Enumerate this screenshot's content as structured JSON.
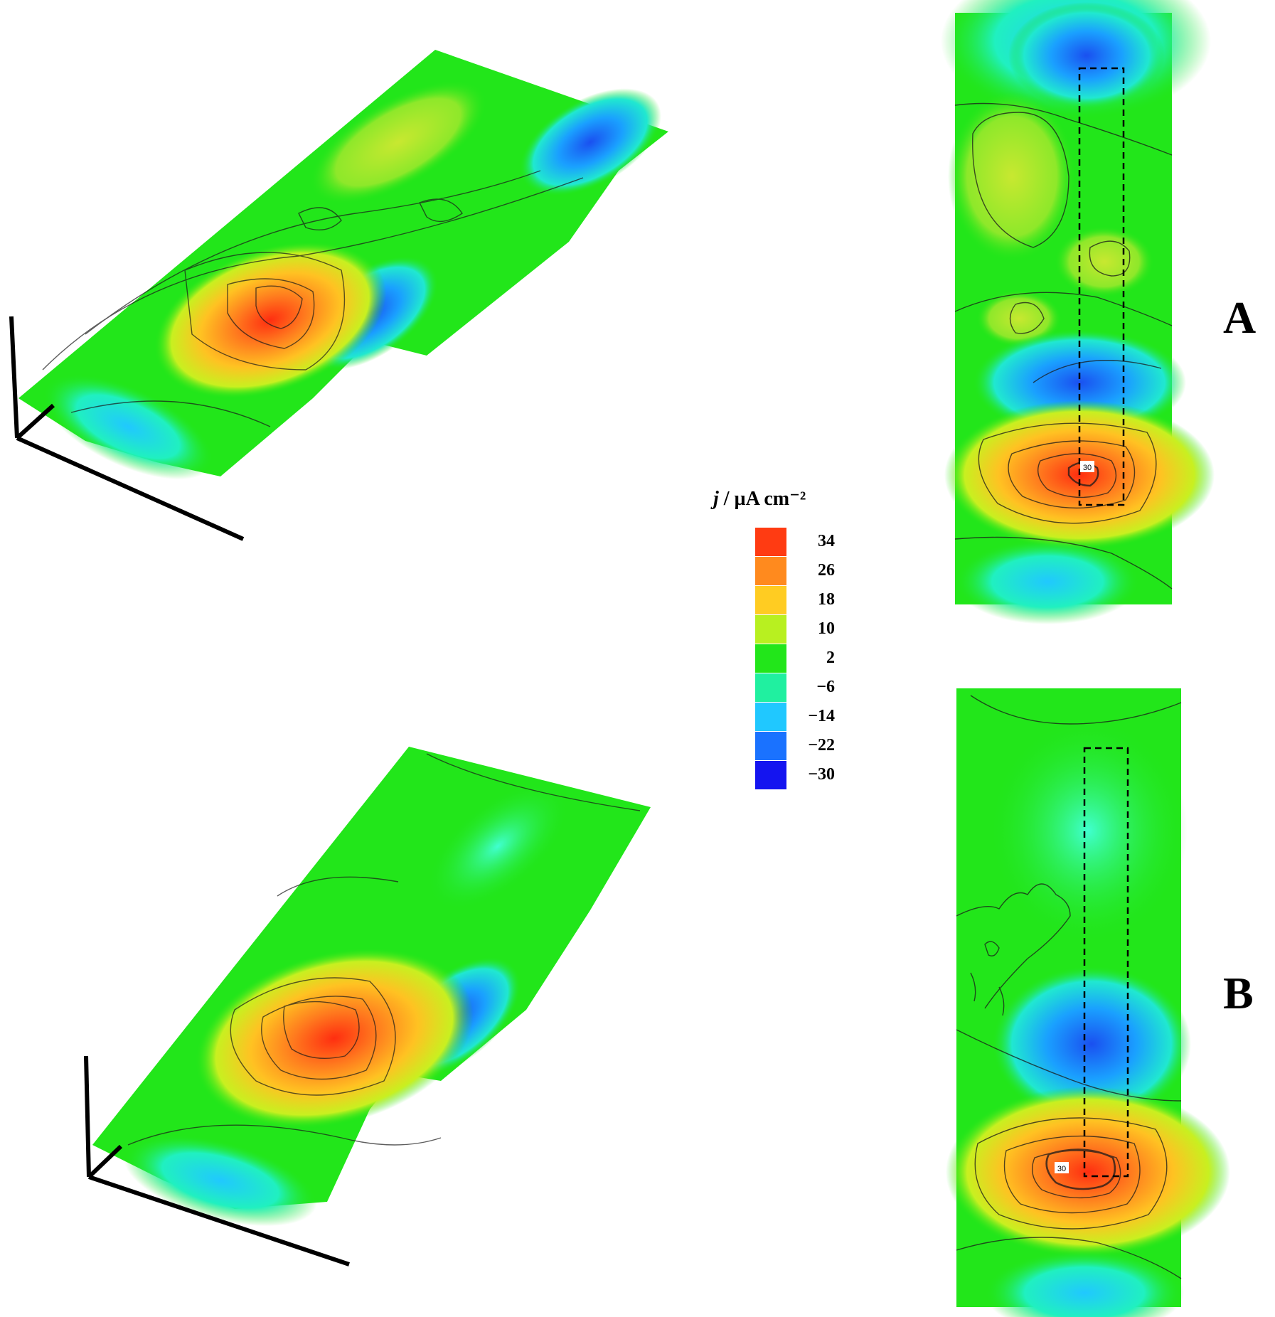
{
  "chart_data": [
    {
      "type": "heatmap",
      "panel": "A",
      "colorbar_title": "j / µA cm⁻²",
      "colorbar_levels": [
        34,
        26,
        18,
        10,
        2,
        -6,
        -14,
        -22,
        -30
      ],
      "contour_label": "30",
      "views": [
        "3D surface",
        "2D map"
      ],
      "features": [
        "anodic peak ≈ 30",
        "cathodic minima ≈ -22"
      ]
    },
    {
      "type": "heatmap",
      "panel": "B",
      "colorbar_title": "j / µA cm⁻²",
      "colorbar_levels": [
        34,
        26,
        18,
        10,
        2,
        -6,
        -14,
        -22,
        -30
      ],
      "contour_label": "30",
      "views": [
        "3D surface",
        "2D map"
      ],
      "features": [
        "anodic peak ≈ 34",
        "cathodic minimum ≈ -22"
      ]
    }
  ],
  "labels": {
    "a": "A",
    "b": "B"
  },
  "legend": {
    "title_italic": "j",
    "title_rest": " / µA cm⁻²",
    "items": [
      {
        "label": "34",
        "color": "#ff3b12"
      },
      {
        "label": "26",
        "color": "#ff8a1e"
      },
      {
        "label": "18",
        "color": "#ffcc22"
      },
      {
        "label": "10",
        "color": "#b8f020"
      },
      {
        "label": "2",
        "color": "#22e61a"
      },
      {
        "label": "−6",
        "color": "#20f0a0"
      },
      {
        "label": "−14",
        "color": "#20c8ff"
      },
      {
        "label": "−22",
        "color": "#1a72ff"
      },
      {
        "label": "−30",
        "color": "#1414f0"
      }
    ]
  },
  "map_badge": "30"
}
